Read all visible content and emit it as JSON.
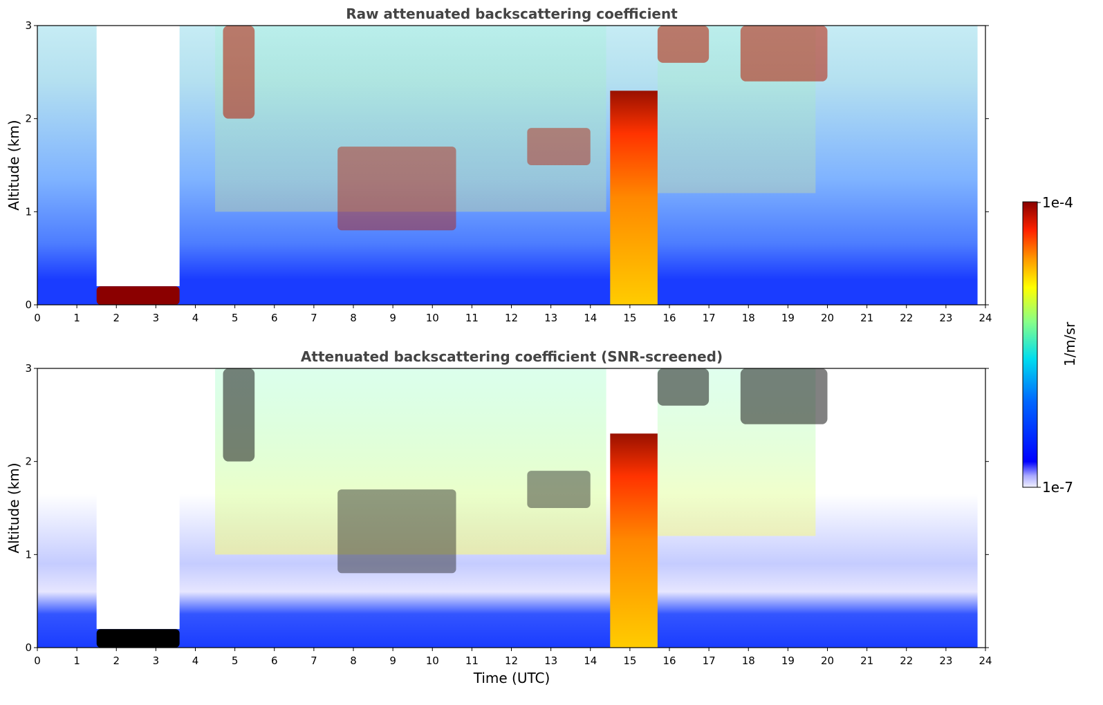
{
  "chart_data": [
    {
      "type": "heatmap",
      "title": "Raw attenuated backscattering coefficient",
      "ylabel": "Altitude (km)",
      "xlabel": "",
      "xlim": [
        0,
        24
      ],
      "ylim": [
        0,
        3
      ],
      "x_ticks": [
        "0",
        "1",
        "2",
        "3",
        "4",
        "5",
        "6",
        "7",
        "8",
        "9",
        "10",
        "11",
        "12",
        "13",
        "14",
        "15",
        "16",
        "17",
        "18",
        "19",
        "20",
        "21",
        "22",
        "23",
        "24"
      ],
      "y_ticks": [
        "0",
        "1",
        "2",
        "3"
      ],
      "screened": false,
      "features": [
        {
          "kind": "low-cloud",
          "t0": 1.5,
          "t1": 3.6,
          "h0": 0.0,
          "h1": 0.2
        },
        {
          "kind": "signal-blocked",
          "t0": 1.5,
          "t1": 3.6,
          "h0": 0.2,
          "h1": 3.0
        },
        {
          "kind": "cirrus",
          "t0": 4.7,
          "t1": 5.5,
          "h0": 2.0,
          "h1": 3.0
        },
        {
          "kind": "cloud-layer",
          "t0": 7.6,
          "t1": 10.6,
          "h0": 0.8,
          "h1": 1.7
        },
        {
          "kind": "cloud-layer",
          "t0": 12.4,
          "t1": 14.0,
          "h0": 1.5,
          "h1": 1.9
        },
        {
          "kind": "precipitation",
          "t0": 14.5,
          "t1": 15.7,
          "h0": 0.0,
          "h1": 2.3
        },
        {
          "kind": "cirrus",
          "t0": 15.7,
          "t1": 17.0,
          "h0": 2.6,
          "h1": 3.0
        },
        {
          "kind": "cirrus",
          "t0": 17.8,
          "t1": 20.0,
          "h0": 2.4,
          "h1": 3.0
        }
      ]
    },
    {
      "type": "heatmap",
      "title": "Attenuated backscattering coefficient (SNR-screened)",
      "ylabel": "Altitude (km)",
      "xlabel": "Time (UTC)",
      "xlim": [
        0,
        24
      ],
      "ylim": [
        0,
        3
      ],
      "x_ticks": [
        "0",
        "1",
        "2",
        "3",
        "4",
        "5",
        "6",
        "7",
        "8",
        "9",
        "10",
        "11",
        "12",
        "13",
        "14",
        "15",
        "16",
        "17",
        "18",
        "19",
        "20",
        "21",
        "22",
        "23",
        "24"
      ],
      "y_ticks": [
        "0",
        "1",
        "2",
        "3"
      ],
      "screened": true,
      "features": [
        {
          "kind": "low-cloud",
          "t0": 1.5,
          "t1": 3.6,
          "h0": 0.0,
          "h1": 0.2
        },
        {
          "kind": "signal-blocked",
          "t0": 1.5,
          "t1": 3.6,
          "h0": 0.2,
          "h1": 3.0
        },
        {
          "kind": "cirrus",
          "t0": 4.7,
          "t1": 5.5,
          "h0": 2.0,
          "h1": 3.0
        },
        {
          "kind": "cloud-layer",
          "t0": 7.6,
          "t1": 10.6,
          "h0": 0.8,
          "h1": 1.7
        },
        {
          "kind": "cloud-layer",
          "t0": 12.4,
          "t1": 14.0,
          "h0": 1.5,
          "h1": 1.9
        },
        {
          "kind": "precipitation",
          "t0": 14.5,
          "t1": 15.7,
          "h0": 0.0,
          "h1": 2.3
        },
        {
          "kind": "cirrus",
          "t0": 15.7,
          "t1": 17.0,
          "h0": 2.6,
          "h1": 3.0
        },
        {
          "kind": "cirrus",
          "t0": 17.8,
          "t1": 20.0,
          "h0": 2.4,
          "h1": 3.0
        }
      ]
    }
  ],
  "colorbar": {
    "max_label": "1e-4",
    "min_label": "1e-7",
    "unit_label": "1/m/sr",
    "scale": "log",
    "range": [
      1e-07,
      0.0001
    ],
    "colormap": "jet"
  },
  "colors": {
    "title": "#444444",
    "saturated_low_cloud": "#8b0000",
    "screened_saturated": "#000000"
  }
}
